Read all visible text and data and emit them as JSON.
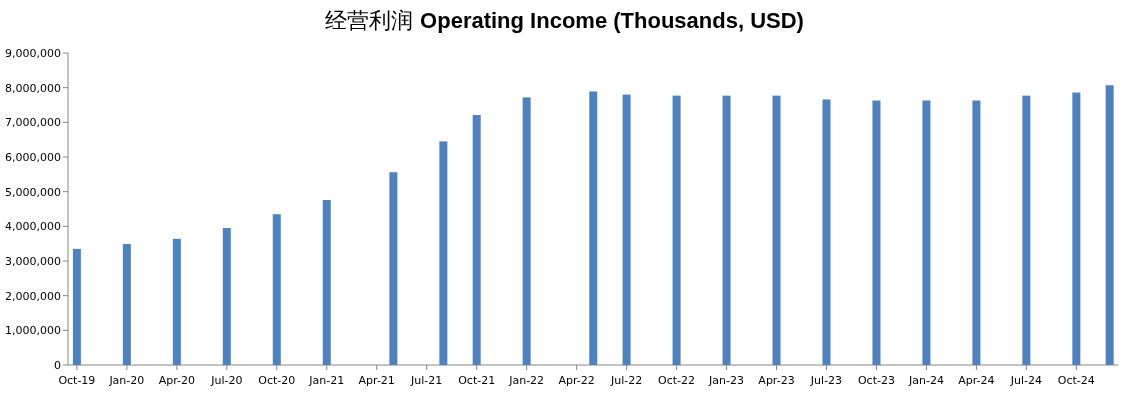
{
  "chart_data": {
    "type": "bar",
    "title": "经营利润 **Operating Income (Thousands, USD)**",
    "x": [
      "2019-10",
      "2020-01",
      "2020-04",
      "2020-07",
      "2020-10",
      "2021-01",
      "2021-05",
      "2021-08",
      "2021-10",
      "2022-01",
      "2022-05",
      "2022-07",
      "2022-10",
      "2023-01",
      "2023-04",
      "2023-07",
      "2023-10",
      "2024-01",
      "2024-04",
      "2024-07",
      "2024-10",
      "2024-12"
    ],
    "values": [
      3350000,
      3490000,
      3640000,
      3950000,
      4350000,
      4760000,
      5560000,
      6450000,
      7210000,
      7720000,
      7890000,
      7800000,
      7770000,
      7770000,
      7770000,
      7660000,
      7630000,
      7630000,
      7630000,
      7770000,
      7860000,
      8070000
    ],
    "color": "#4f81bd",
    "xlim": [
      "2019-09-15",
      "2024-12-16"
    ],
    "xticks": [
      {
        "value": "2019-10",
        "label": "Oct-19"
      },
      {
        "value": "2020-01",
        "label": "Jan-20"
      },
      {
        "value": "2020-04",
        "label": "Apr-20"
      },
      {
        "value": "2020-07",
        "label": "Jul-20"
      },
      {
        "value": "2020-10",
        "label": "Oct-20"
      },
      {
        "value": "2021-01",
        "label": "Jan-21"
      },
      {
        "value": "2021-04",
        "label": "Apr-21"
      },
      {
        "value": "2021-07",
        "label": "Jul-21"
      },
      {
        "value": "2021-10",
        "label": "Oct-21"
      },
      {
        "value": "2022-01",
        "label": "Jan-22"
      },
      {
        "value": "2022-04",
        "label": "Apr-22"
      },
      {
        "value": "2022-07",
        "label": "Jul-22"
      },
      {
        "value": "2022-10",
        "label": "Oct-22"
      },
      {
        "value": "2023-01",
        "label": "Jan-23"
      },
      {
        "value": "2023-04",
        "label": "Apr-23"
      },
      {
        "value": "2023-07",
        "label": "Jul-23"
      },
      {
        "value": "2023-10",
        "label": "Oct-23"
      },
      {
        "value": "2024-01",
        "label": "Jan-24"
      },
      {
        "value": "2024-04",
        "label": "Apr-24"
      },
      {
        "value": "2024-07",
        "label": "Jul-24"
      },
      {
        "value": "2024-10",
        "label": "Oct-24"
      }
    ],
    "ylim": [
      0,
      9000000
    ],
    "yticks": [
      {
        "value": 0,
        "label": "0"
      },
      {
        "value": 1000000,
        "label": "1,000,000"
      },
      {
        "value": 2000000,
        "label": "2,000,000"
      },
      {
        "value": 3000000,
        "label": "3,000,000"
      },
      {
        "value": 4000000,
        "label": "4,000,000"
      },
      {
        "value": 5000000,
        "label": "5,000,000"
      },
      {
        "value": 6000000,
        "label": "6,000,000"
      },
      {
        "value": 7000000,
        "label": "7,000,000"
      },
      {
        "value": 8000000,
        "label": "8,000,000"
      },
      {
        "value": 9000000,
        "label": "9,000,000"
      }
    ],
    "grid": false
  }
}
